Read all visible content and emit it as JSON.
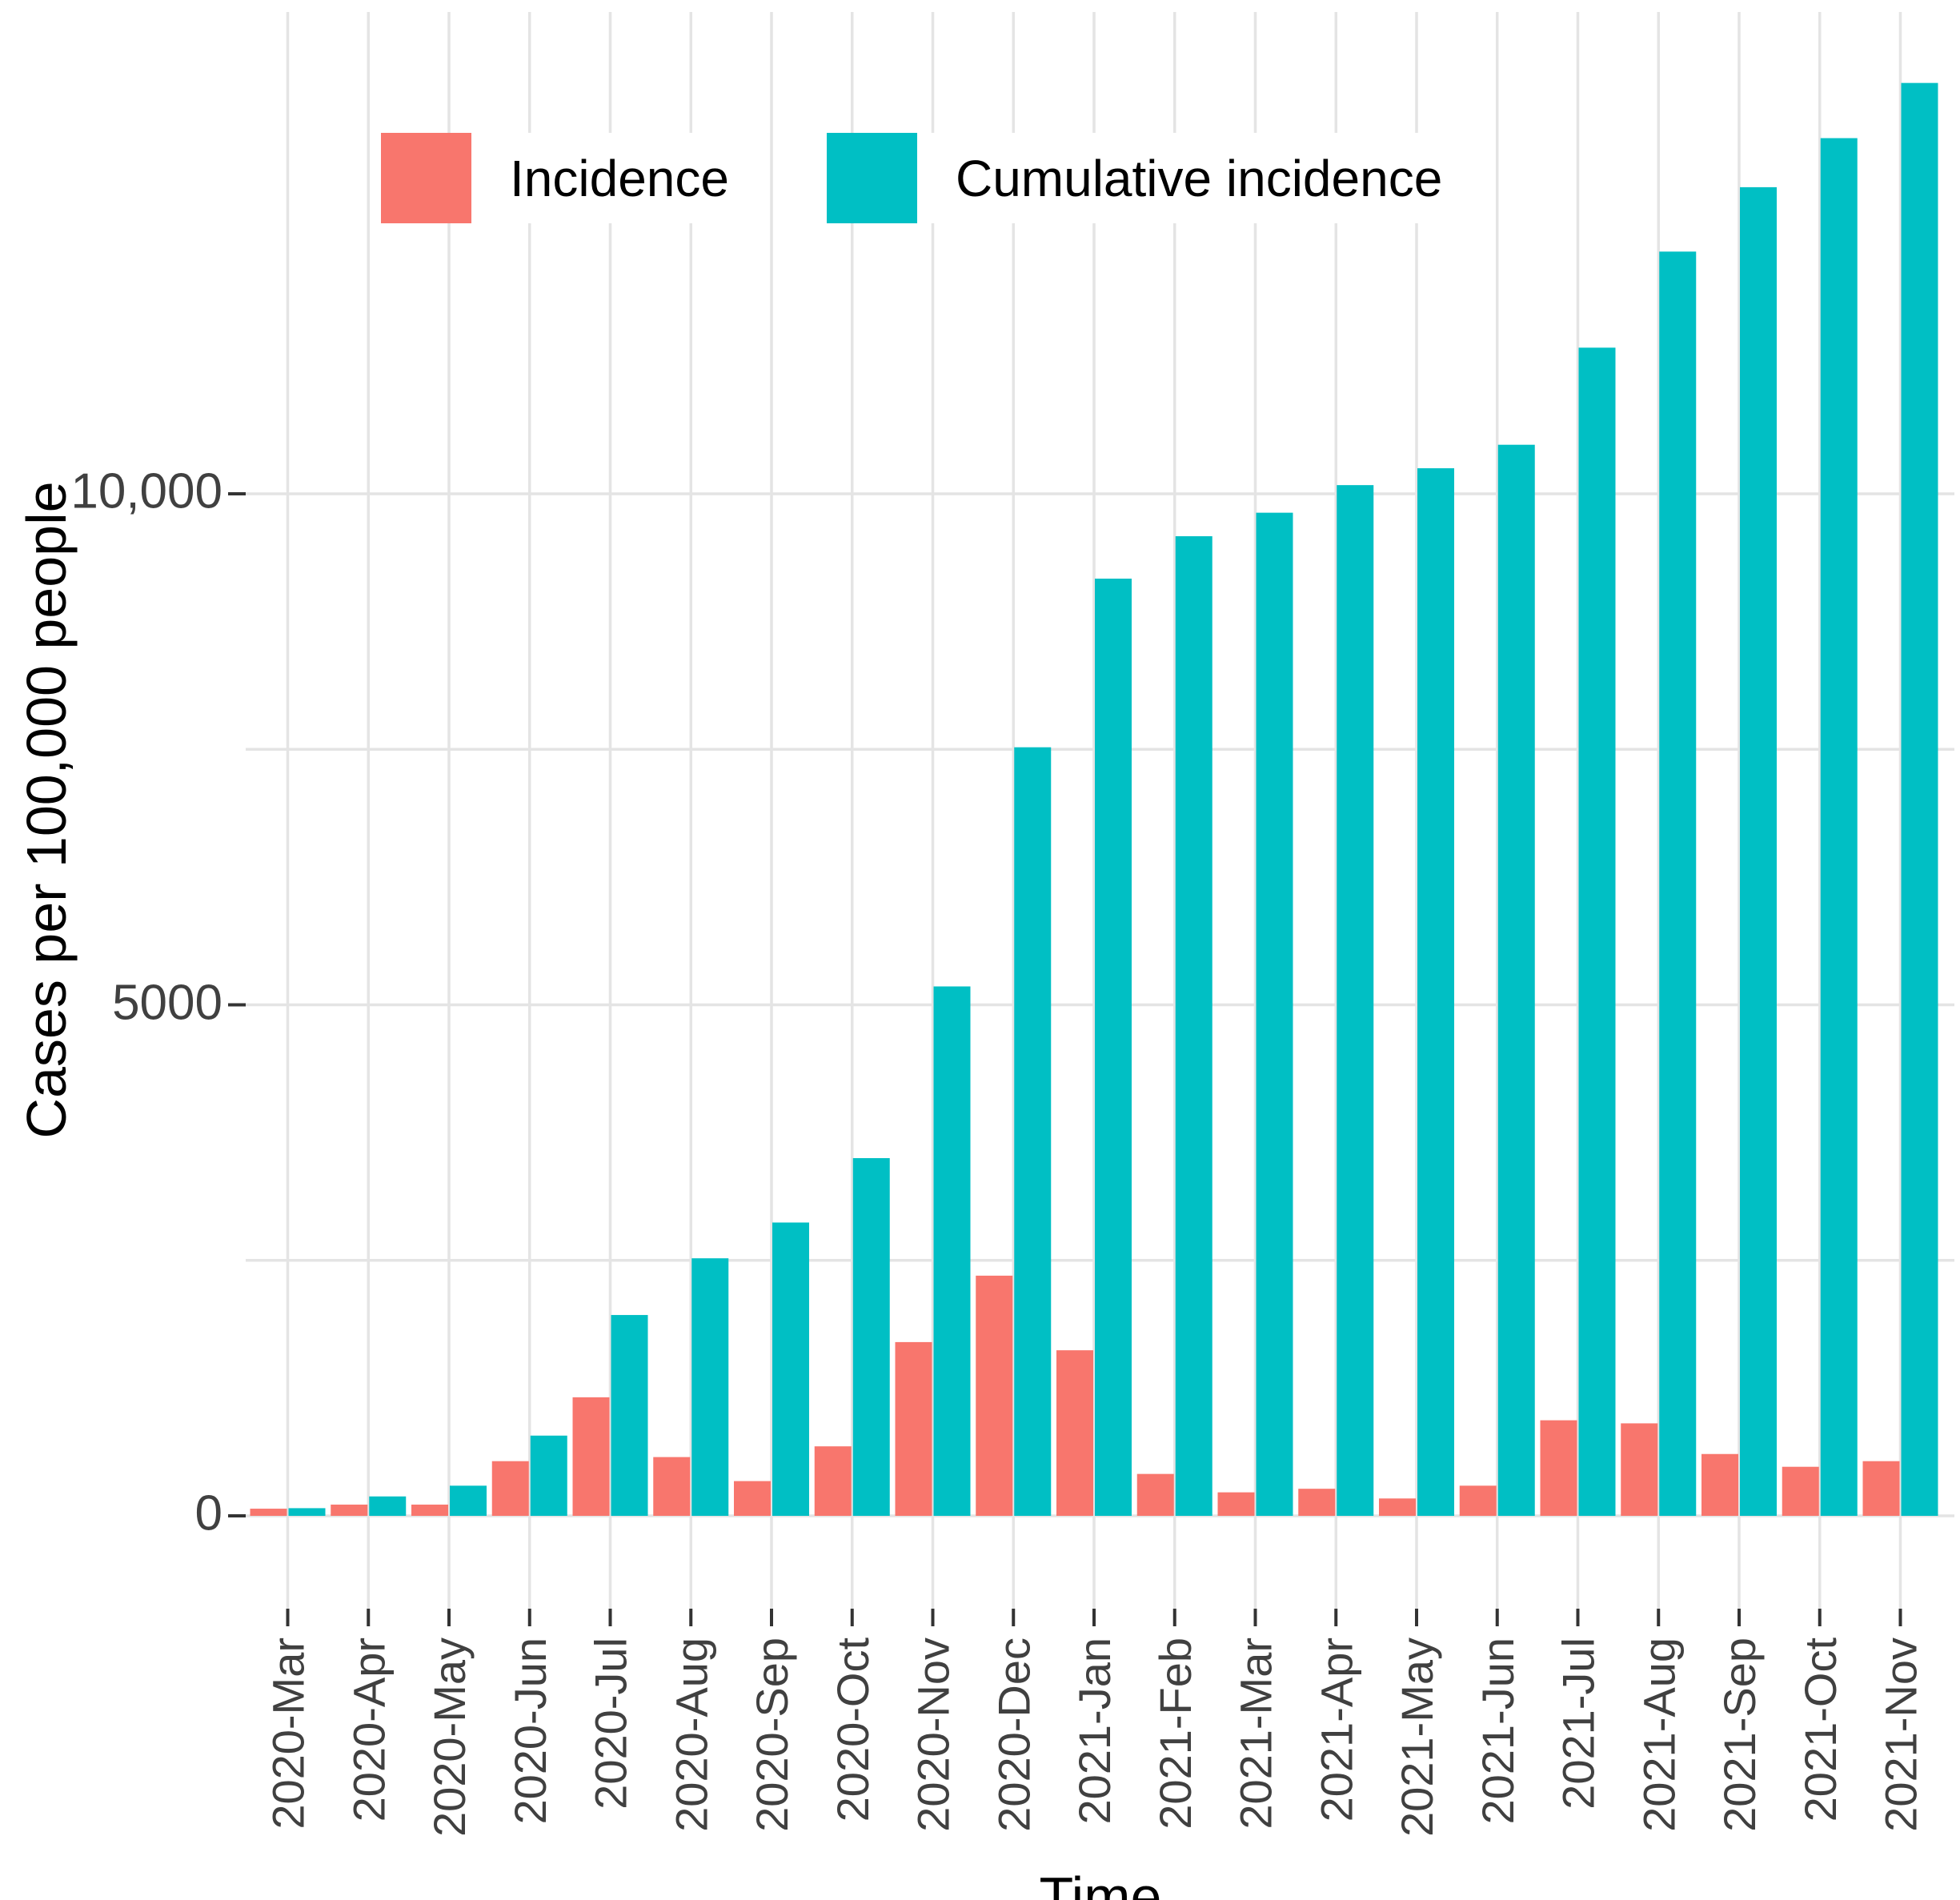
{
  "chart_data": {
    "type": "bar",
    "title": "",
    "xlabel": "Time",
    "ylabel": "Cases per 100,000 people",
    "grid": true,
    "legend_position": "top-left-inside",
    "ylim": [
      0,
      14700
    ],
    "gridline_step": 2500,
    "y_ticks": [
      {
        "value": 0,
        "label": "0"
      },
      {
        "value": 5000,
        "label": "5000"
      },
      {
        "value": 10000,
        "label": "10,000"
      }
    ],
    "categories": [
      "2020-Mar",
      "2020-Apr",
      "2020-May",
      "2020-Jun",
      "2020-Jul",
      "2020-Aug",
      "2020-Sep",
      "2020-Oct",
      "2020-Nov",
      "2020-Dec",
      "2021-Jan",
      "2021-Feb",
      "2021-Mar",
      "2021-Apr",
      "2021-May",
      "2021-Jun",
      "2021-Jul",
      "2021-Aug",
      "2021-Sep",
      "2021-Oct",
      "2021-Nov"
    ],
    "series": [
      {
        "name": "Incidence",
        "color": "#F8766D",
        "values": [
          70,
          110,
          110,
          535,
          1160,
          575,
          340,
          680,
          1700,
          2350,
          1620,
          410,
          230,
          265,
          170,
          295,
          935,
          905,
          605,
          480,
          535
        ]
      },
      {
        "name": "Cumulative incidence",
        "color": "#00BFC4",
        "values": [
          75,
          190,
          295,
          785,
          1965,
          2520,
          2870,
          3500,
          5180,
          7520,
          9170,
          9585,
          9815,
          10085,
          10250,
          10480,
          11430,
          12370,
          13000,
          13480,
          14020
        ]
      }
    ],
    "colors": {
      "gridline": "#E4E4E4",
      "tick_mark": "#333333",
      "axis_text": "#404040"
    }
  }
}
